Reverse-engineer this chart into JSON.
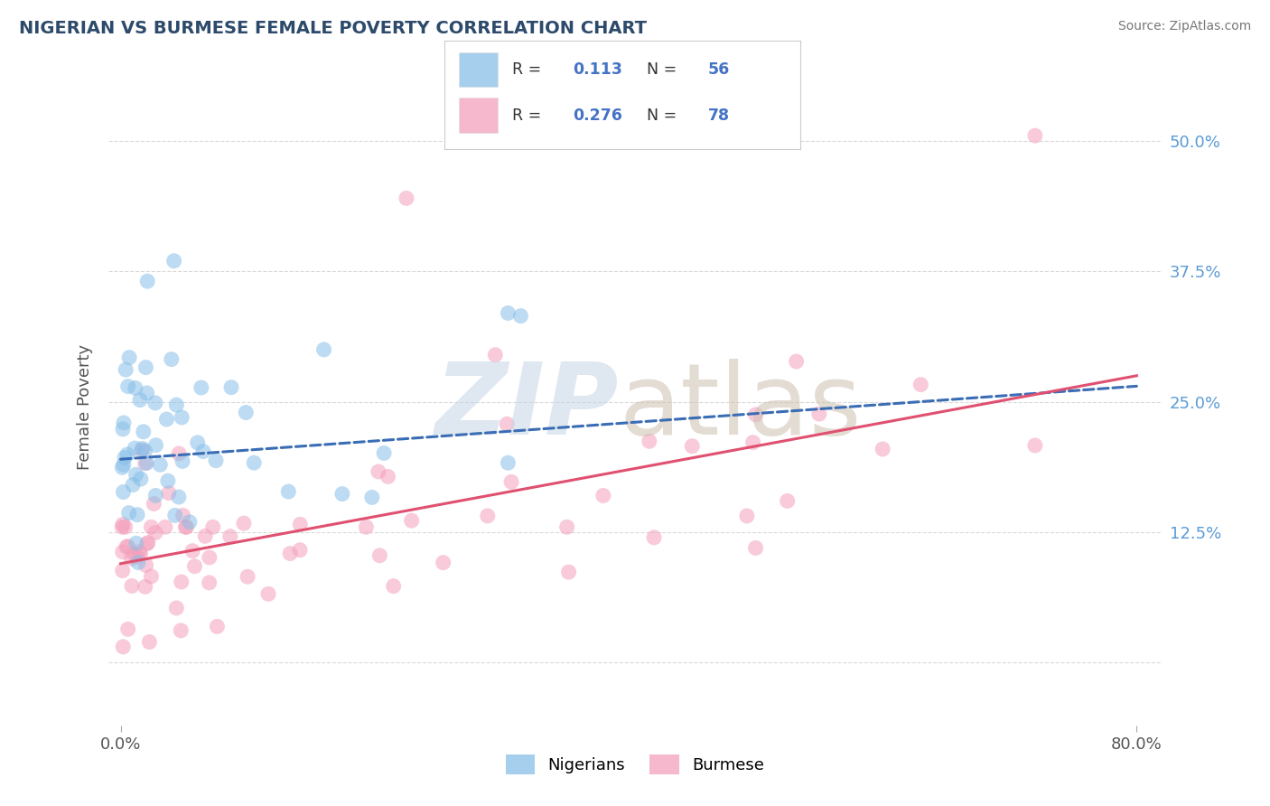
{
  "title": "NIGERIAN VS BURMESE FEMALE POVERTY CORRELATION CHART",
  "source": "Source: ZipAtlas.com",
  "ylabel": "Female Poverty",
  "ytick_labels": [
    "",
    "12.5%",
    "25.0%",
    "37.5%",
    "50.0%"
  ],
  "ytick_values": [
    0.0,
    0.125,
    0.25,
    0.375,
    0.5
  ],
  "xtick_labels": [
    "0.0%",
    "80.0%"
  ],
  "xtick_values": [
    0.0,
    0.8
  ],
  "xlim": [
    -0.01,
    0.82
  ],
  "ylim": [
    -0.06,
    0.55
  ],
  "legend_R": [
    "0.113",
    "0.276"
  ],
  "legend_N": [
    "56",
    "78"
  ],
  "legend_bottom": [
    "Nigerians",
    "Burmese"
  ],
  "nigerian_color": "#88bfe8",
  "burmese_color": "#f4a0bc",
  "nigerian_line_color": "#3a6db5",
  "burmese_line_color": "#e05070",
  "nigerian_line_style": "--",
  "burmese_line_style": "-",
  "background_color": "#ffffff",
  "grid_color": "#cccccc",
  "title_color": "#2d4a6b",
  "source_color": "#777777",
  "legend_text_color": "#4472c4",
  "yticklabel_color": "#5b9bd5",
  "nig_line_x0": 0.0,
  "nig_line_y0": 0.195,
  "nig_line_x1": 0.8,
  "nig_line_y1": 0.265,
  "bur_line_x0": 0.0,
  "bur_line_y0": 0.095,
  "bur_line_x1": 0.8,
  "bur_line_y1": 0.275
}
